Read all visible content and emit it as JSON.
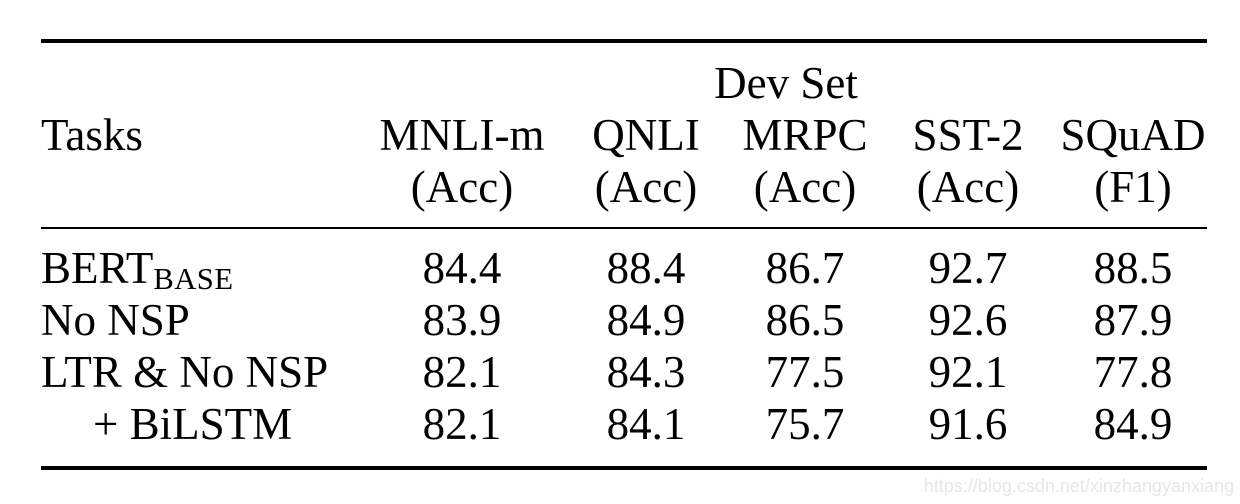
{
  "colors": {
    "text": "#000000",
    "background": "#ffffff",
    "rule": "#000000",
    "watermark": "#e6e6e8"
  },
  "table": {
    "group_header": "Dev Set",
    "task_column_header": "Tasks",
    "columns": [
      {
        "name": "MNLI-m",
        "metric": "(Acc)"
      },
      {
        "name": "QNLI",
        "metric": "(Acc)"
      },
      {
        "name": "MRPC",
        "metric": "(Acc)"
      },
      {
        "name": "SST-2",
        "metric": "(Acc)"
      },
      {
        "name": "SQuAD",
        "metric": "(F1)"
      }
    ],
    "rows": [
      {
        "task": "BERT",
        "task_subscript": "BASE",
        "values": [
          "84.4",
          "88.4",
          "86.7",
          "92.7",
          "88.5"
        ]
      },
      {
        "task": "No NSP",
        "task_subscript": "",
        "values": [
          "83.9",
          "84.9",
          "86.5",
          "92.6",
          "87.9"
        ]
      },
      {
        "task": "LTR & No NSP",
        "task_subscript": "",
        "values": [
          "82.1",
          "84.3",
          "77.5",
          "92.1",
          "77.8"
        ]
      },
      {
        "task": "+ BiLSTM",
        "task_subscript": "",
        "values": [
          "82.1",
          "84.1",
          "75.7",
          "91.6",
          "84.9"
        ]
      }
    ]
  },
  "watermark": {
    "text": "https://blog.csdn.net/xinzhangyanxiang"
  }
}
